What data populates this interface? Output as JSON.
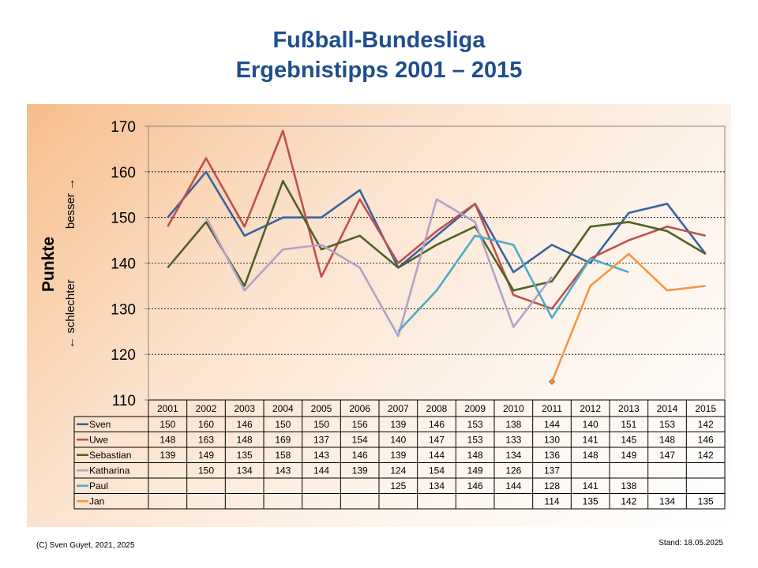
{
  "title_line1": "Fußball-Bundesliga",
  "title_line2": "Ergebnistipps 2001 – 2015",
  "footer_left": "(C) Sven Guyet, 2021, 2025",
  "footer_right": "Stand: 18.05.2025",
  "chart_data": {
    "type": "line",
    "title": "Fußball-Bundesliga Ergebnistipps 2001 – 2015",
    "ylabel": "Punkte",
    "ylabel_low": "← schlechter",
    "ylabel_high": "besser →",
    "ylim": [
      110,
      170
    ],
    "yticks": [
      110,
      120,
      130,
      140,
      150,
      160,
      170
    ],
    "grid": true,
    "legend": "data-table-below",
    "categories": [
      "2001",
      "2002",
      "2003",
      "2004",
      "2005",
      "2006",
      "2007",
      "2008",
      "2009",
      "2010",
      "2011",
      "2012",
      "2013",
      "2014",
      "2015"
    ],
    "series": [
      {
        "name": "Sven",
        "color": "#3a64a0",
        "values": [
          150,
          160,
          146,
          150,
          150,
          156,
          139,
          146,
          153,
          138,
          144,
          140,
          151,
          153,
          142
        ]
      },
      {
        "name": "Uwe",
        "color": "#c0504d",
        "values": [
          148,
          163,
          148,
          169,
          137,
          154,
          140,
          147,
          153,
          133,
          130,
          141,
          145,
          148,
          146
        ]
      },
      {
        "name": "Sebastian",
        "color": "#4f6228",
        "values": [
          139,
          149,
          135,
          158,
          143,
          146,
          139,
          144,
          148,
          134,
          136,
          148,
          149,
          147,
          142
        ]
      },
      {
        "name": "Katharina",
        "color": "#b3a2c7",
        "values": [
          null,
          150,
          134,
          143,
          144,
          139,
          124,
          154,
          149,
          126,
          137,
          null,
          null,
          null,
          null
        ]
      },
      {
        "name": "Paul",
        "color": "#4bacc6",
        "values": [
          null,
          null,
          null,
          null,
          null,
          null,
          125,
          134,
          146,
          144,
          128,
          141,
          138,
          null,
          null
        ]
      },
      {
        "name": "Jan",
        "color": "#f79646",
        "values": [
          null,
          null,
          null,
          null,
          null,
          null,
          null,
          null,
          null,
          null,
          114,
          135,
          142,
          134,
          135
        ]
      }
    ]
  }
}
